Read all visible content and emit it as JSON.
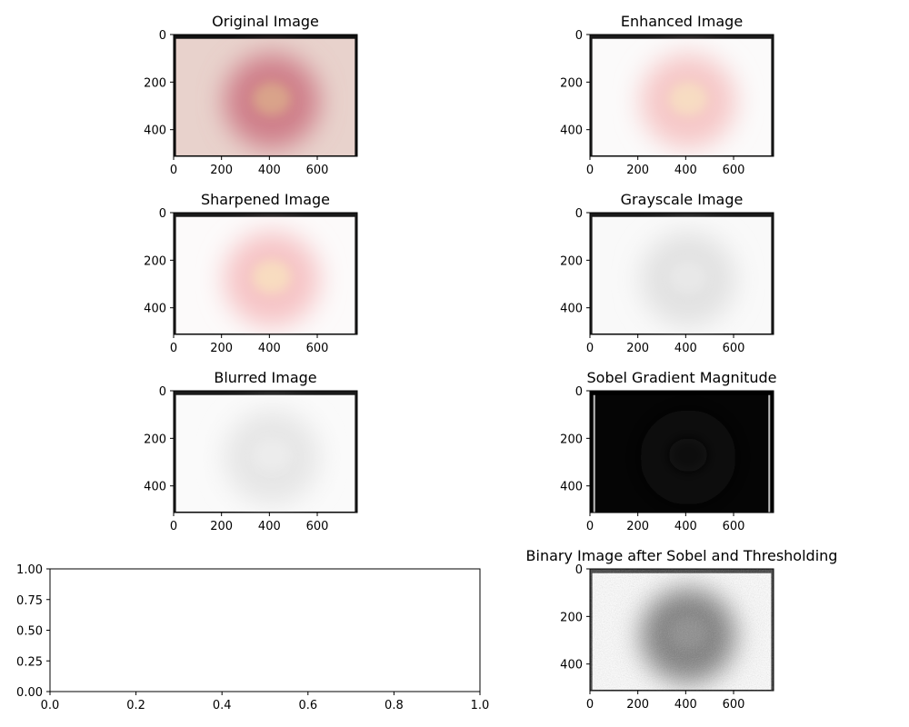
{
  "chart_data": [
    {
      "type": "image",
      "title": "Original Image",
      "xticks": [
        "0",
        "200",
        "400",
        "600"
      ],
      "yticks": [
        "0",
        "200",
        "400"
      ],
      "xlim": [
        0,
        767
      ],
      "ylim": [
        0,
        512
      ],
      "colors": {
        "frame": "#111111",
        "skin": "#e8d2cc",
        "lesion": "#cf7f8a",
        "core": "#d9a38a"
      }
    },
    {
      "type": "image",
      "title": "Enhanced Image",
      "xticks": [
        "0",
        "200",
        "400",
        "600"
      ],
      "yticks": [
        "0",
        "200",
        "400"
      ],
      "xlim": [
        0,
        767
      ],
      "ylim": [
        0,
        512
      ],
      "colors": {
        "frame": "#1a1a1a",
        "skin": "#fbfafa",
        "lesion": "#f6c8c8",
        "core": "#f7dcc2"
      }
    },
    {
      "type": "image",
      "title": "Sharpened Image",
      "xticks": [
        "0",
        "200",
        "400",
        "600"
      ],
      "yticks": [
        "0",
        "200",
        "400"
      ],
      "xlim": [
        0,
        767
      ],
      "ylim": [
        0,
        512
      ],
      "colors": {
        "frame": "#1a1a1a",
        "skin": "#fcfafa",
        "lesion": "#f6c4c6",
        "core": "#f8dcc0"
      }
    },
    {
      "type": "image",
      "title": "Grayscale Image",
      "xticks": [
        "0",
        "200",
        "400",
        "600"
      ],
      "yticks": [
        "0",
        "200",
        "400"
      ],
      "xlim": [
        0,
        767
      ],
      "ylim": [
        0,
        512
      ],
      "colors": {
        "frame": "#1a1a1a",
        "skin": "#f9f9f9",
        "lesion": "#e2e2e2",
        "core": "#e8e8e8"
      }
    },
    {
      "type": "image",
      "title": "Blurred Image",
      "xticks": [
        "0",
        "200",
        "400",
        "600"
      ],
      "yticks": [
        "0",
        "200",
        "400"
      ],
      "xlim": [
        0,
        767
      ],
      "ylim": [
        0,
        512
      ],
      "colors": {
        "frame": "#1a1a1a",
        "skin": "#fafafa",
        "lesion": "#e6e6e6",
        "core": "#ececec"
      }
    },
    {
      "type": "image",
      "title": "Sobel Gradient Magnitude",
      "xticks": [
        "0",
        "200",
        "400",
        "600"
      ],
      "yticks": [
        "0",
        "200",
        "400"
      ],
      "xlim": [
        0,
        767
      ],
      "ylim": [
        0,
        512
      ],
      "colors": {
        "frame": "#000000",
        "skin": "#050505",
        "lesion": "#0c0c0c",
        "core": "#0c0c0c",
        "edge": "#bdbdbd"
      }
    },
    {
      "type": "empty",
      "title": "",
      "xticks": [
        "0.0",
        "0.2",
        "0.4",
        "0.6",
        "0.8",
        "1.0"
      ],
      "yticks": [
        "0.00",
        "0.25",
        "0.50",
        "0.75",
        "1.00"
      ],
      "xlim": [
        0,
        1
      ],
      "ylim": [
        0,
        1
      ]
    },
    {
      "type": "image",
      "title": "Binary Image after Sobel and Thresholding",
      "xticks": [
        "0",
        "200",
        "400",
        "600"
      ],
      "yticks": [
        "0",
        "200",
        "400"
      ],
      "xlim": [
        0,
        767
      ],
      "ylim": [
        0,
        512
      ],
      "colors": {
        "frame": "#3a3a3a",
        "skin": "#ffffff",
        "lesion": "#7a7a7a",
        "core": "#8a8a8a"
      }
    }
  ]
}
